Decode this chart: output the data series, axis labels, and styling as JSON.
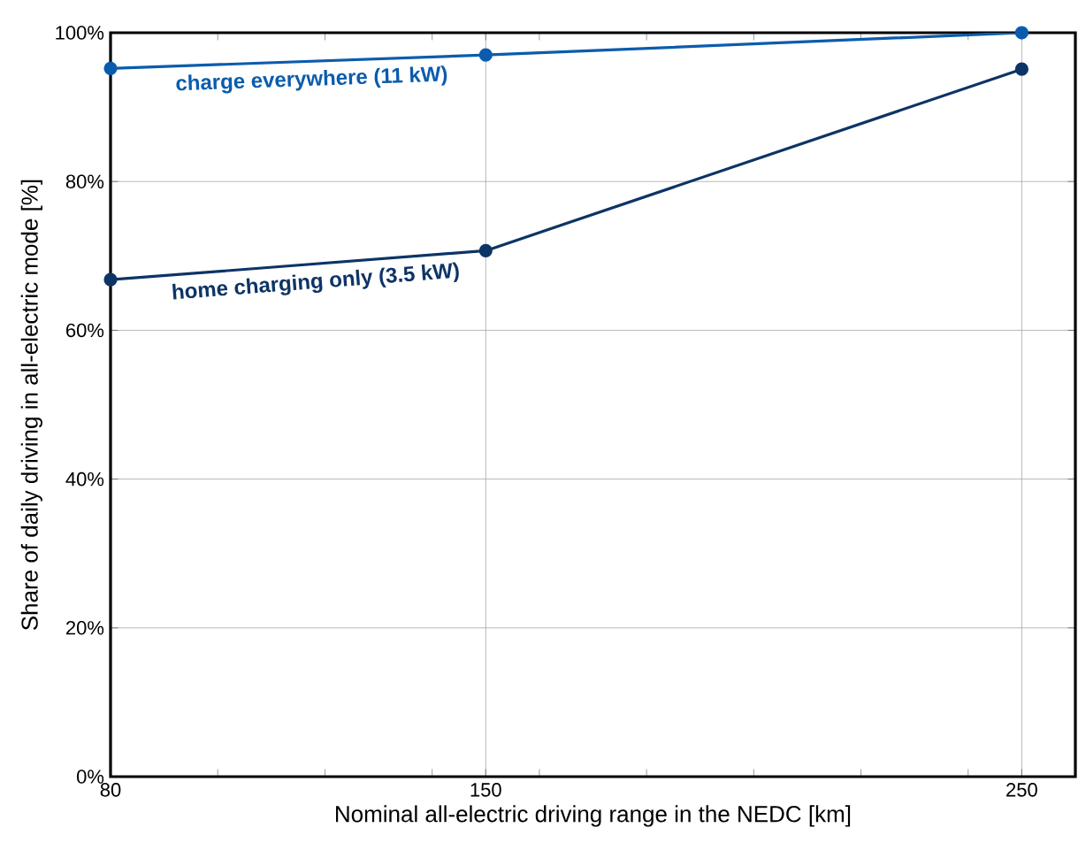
{
  "chart_data": {
    "type": "line",
    "xlabel": "Nominal all-electric driving range in the NEDC [km]",
    "ylabel": "Share of daily driving in all-electric mode [%]",
    "x": [
      80,
      150,
      250
    ],
    "series": [
      {
        "name": "charge everywhere (11 kW)",
        "color": "#0b5cad",
        "values": [
          95.2,
          97.0,
          100
        ]
      },
      {
        "name": "home charging only (3.5 kW)",
        "color": "#0d3466",
        "values": [
          66.8,
          70.7,
          95.1
        ]
      }
    ],
    "xlim": [
      80,
      260
    ],
    "xticks": [
      80,
      {
        "value": 100,
        "label": null
      },
      {
        "value": 120,
        "label": null
      },
      {
        "value": 140,
        "label": null
      },
      150,
      {
        "value": 160,
        "label": null
      },
      {
        "value": 180,
        "label": null
      },
      {
        "value": 200,
        "label": null
      },
      {
        "value": 220,
        "label": null
      },
      {
        "value": 240,
        "label": null
      },
      250
    ],
    "ylim": [
      0,
      100
    ],
    "yticks": [
      {
        "value": 0,
        "label": "0%"
      },
      {
        "value": 20,
        "label": "20%"
      },
      {
        "value": 40,
        "label": "40%"
      },
      {
        "value": 60,
        "label": "60%"
      },
      {
        "value": 80,
        "label": "80%"
      },
      {
        "value": 100,
        "label": "100%"
      }
    ],
    "grid": true,
    "legend": false,
    "marker": "circle",
    "line_style": "solid"
  }
}
